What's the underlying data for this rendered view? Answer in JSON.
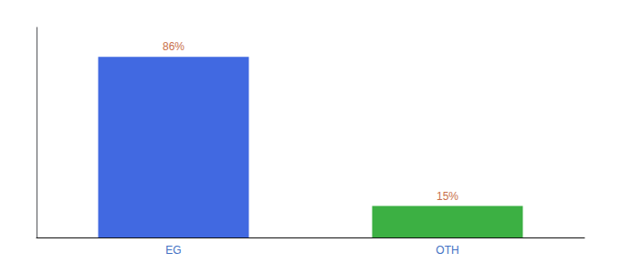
{
  "chart_data": {
    "type": "bar",
    "categories": [
      "EG",
      "OTH"
    ],
    "values": [
      86,
      15
    ],
    "value_labels": [
      "86%",
      "15%"
    ],
    "colors": [
      "#4169e1",
      "#3cb043"
    ],
    "ylim": [
      0,
      100
    ],
    "grid": false,
    "data_labels": true,
    "tick_labels": "x"
  }
}
